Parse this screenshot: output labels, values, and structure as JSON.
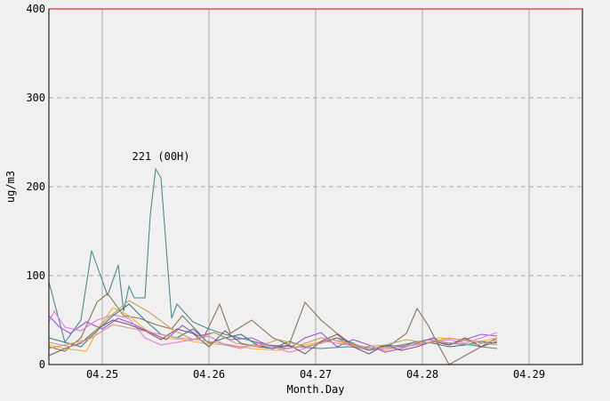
{
  "chart_data": {
    "type": "line",
    "title": "",
    "xlabel": "Month.Day",
    "ylabel": "ug/m3",
    "xlim": [
      4.245,
      4.295
    ],
    "ylim": [
      0,
      400
    ],
    "x_ticks": [
      {
        "value": 4.25,
        "label": "04.25"
      },
      {
        "value": 4.26,
        "label": "04.26"
      },
      {
        "value": 4.27,
        "label": "04.27"
      },
      {
        "value": 4.28,
        "label": "04.28"
      },
      {
        "value": 4.29,
        "label": "04.29"
      }
    ],
    "y_ticks": [
      {
        "value": 0,
        "label": "0"
      },
      {
        "value": 100,
        "label": "100"
      },
      {
        "value": 200,
        "label": "200"
      },
      {
        "value": 300,
        "label": "300"
      },
      {
        "value": 400,
        "label": "400"
      }
    ],
    "grid": true,
    "limit_line": {
      "value": 400,
      "color": "#e03030"
    },
    "annotation": {
      "text": "221 (00H)",
      "x": 4.2555,
      "y": 221
    },
    "series": [
      {
        "color": "#4a8c8c",
        "x": [
          4.245,
          4.2465,
          4.248,
          4.249,
          4.2505,
          4.2515,
          4.252,
          4.2525,
          4.253,
          4.254,
          4.2545,
          4.255,
          4.2555,
          4.2565,
          4.257,
          4.2585,
          4.26,
          4.2615,
          4.2635,
          4.2655,
          4.268,
          4.2705,
          4.273,
          4.2755,
          4.278,
          4.2805,
          4.2825,
          4.2845,
          4.2855,
          4.287
        ],
        "y": [
          93,
          25,
          50,
          128,
          78,
          112,
          60,
          88,
          75,
          75,
          168,
          220,
          210,
          52,
          68,
          48,
          40,
          34,
          28,
          22,
          20,
          18,
          20,
          18,
          22,
          28,
          24,
          22,
          20,
          18
        ]
      },
      {
        "color": "#8b7355",
        "x": [
          4.245,
          4.2465,
          4.248,
          4.2495,
          4.2505,
          4.252,
          4.2535,
          4.255,
          4.2565,
          4.2575,
          4.2595,
          4.261,
          4.262,
          4.264,
          4.266,
          4.2675,
          4.269,
          4.2705,
          4.272,
          4.2735,
          4.2755,
          4.277,
          4.2785,
          4.2795,
          4.2805,
          4.2815,
          4.2825,
          4.284,
          4.2855,
          4.287
        ],
        "y": [
          20,
          15,
          30,
          70,
          80,
          55,
          52,
          45,
          40,
          55,
          30,
          68,
          35,
          50,
          30,
          22,
          70,
          50,
          35,
          22,
          18,
          22,
          35,
          63,
          45,
          22,
          0,
          10,
          20,
          30
        ]
      },
      {
        "color": "#f2b32c",
        "x": [
          4.245,
          4.2465,
          4.2485,
          4.25,
          4.251,
          4.2525,
          4.254,
          4.2555,
          4.2575,
          4.2595,
          4.2615,
          4.264,
          4.2665,
          4.269,
          4.2715,
          4.274,
          4.2765,
          4.279,
          4.2815,
          4.284,
          4.2855,
          4.287
        ],
        "y": [
          22,
          18,
          15,
          48,
          64,
          55,
          40,
          30,
          28,
          24,
          22,
          18,
          16,
          22,
          28,
          20,
          16,
          24,
          30,
          28,
          26,
          30
        ]
      },
      {
        "color": "#a24fd8",
        "x": [
          4.245,
          4.246,
          4.247,
          4.2485,
          4.25,
          4.2515,
          4.253,
          4.2545,
          4.256,
          4.2575,
          4.259,
          4.2605,
          4.262,
          4.264,
          4.2655,
          4.2675,
          4.269,
          4.2705,
          4.272,
          4.2735,
          4.275,
          4.2765,
          4.278,
          4.2795,
          4.281,
          4.2825,
          4.284,
          4.2855,
          4.287
        ],
        "y": [
          55,
          42,
          35,
          48,
          40,
          52,
          45,
          36,
          28,
          44,
          32,
          36,
          28,
          30,
          22,
          18,
          30,
          36,
          20,
          28,
          22,
          14,
          18,
          24,
          30,
          22,
          28,
          34,
          32
        ]
      },
      {
        "color": "#e07ee0",
        "x": [
          4.245,
          4.2455,
          4.2465,
          4.248,
          4.2495,
          4.251,
          4.2525,
          4.254,
          4.2555,
          4.257,
          4.2585,
          4.26,
          4.2615,
          4.263,
          4.2645,
          4.266,
          4.2675,
          4.269,
          4.2705,
          4.272,
          4.2735,
          4.275,
          4.2765,
          4.278,
          4.2795,
          4.281,
          4.2825,
          4.284,
          4.2855,
          4.287
        ],
        "y": [
          48,
          60,
          42,
          38,
          50,
          56,
          52,
          30,
          22,
          25,
          28,
          32,
          22,
          18,
          24,
          20,
          14,
          18,
          26,
          30,
          20,
          16,
          18,
          20,
          22,
          25,
          28,
          24,
          30,
          36
        ]
      },
      {
        "color": "#7a5c6b",
        "x": [
          4.245,
          4.2465,
          4.248,
          4.2495,
          4.251,
          4.2525,
          4.254,
          4.2555,
          4.257,
          4.2585,
          4.26,
          4.2615,
          4.263,
          4.2645,
          4.266,
          4.2675,
          4.269,
          4.2705,
          4.272,
          4.2735,
          4.275,
          4.2765,
          4.278,
          4.2795,
          4.281,
          4.2825,
          4.284,
          4.2855,
          4.287
        ],
        "y": [
          10,
          18,
          24,
          40,
          50,
          45,
          38,
          28,
          40,
          35,
          20,
          38,
          24,
          20,
          18,
          22,
          12,
          26,
          34,
          20,
          12,
          22,
          16,
          20,
          26,
          22,
          30,
          20,
          26
        ]
      },
      {
        "color": "#3d7d7d",
        "x": [
          4.245,
          4.2465,
          4.248,
          4.2495,
          4.251,
          4.2525,
          4.254,
          4.2555,
          4.257,
          4.2585,
          4.26,
          4.2615,
          4.263,
          4.2645,
          4.266,
          4.2675,
          4.269,
          4.2705,
          4.272,
          4.2735,
          4.275,
          4.2765,
          4.278,
          4.2795,
          4.281,
          4.2825,
          4.284,
          4.2855,
          4.287
        ],
        "y": [
          30,
          25,
          20,
          38,
          55,
          68,
          50,
          34,
          30,
          40,
          24,
          30,
          34,
          22,
          18,
          26,
          20,
          24,
          30,
          24,
          16,
          22,
          20,
          26,
          24,
          20,
          22,
          26,
          24
        ]
      },
      {
        "color": "#d99090",
        "x": [
          4.245,
          4.247,
          4.249,
          4.251,
          4.253,
          4.255,
          4.257,
          4.259,
          4.261,
          4.263,
          4.265,
          4.267,
          4.269,
          4.271,
          4.273,
          4.275,
          4.277,
          4.279,
          4.281,
          4.283,
          4.285,
          4.287
        ],
        "y": [
          25,
          20,
          30,
          45,
          40,
          35,
          30,
          28,
          24,
          20,
          22,
          18,
          20,
          26,
          22,
          18,
          20,
          22,
          26,
          24,
          22,
          28
        ]
      },
      {
        "color": "#c8a060",
        "x": [
          4.245,
          4.2465,
          4.2485,
          4.2505,
          4.2525,
          4.2545,
          4.2565,
          4.2585,
          4.2605,
          4.2625,
          4.2645,
          4.2665,
          4.2685,
          4.2705,
          4.2725,
          4.2745,
          4.2765,
          4.2785,
          4.2805,
          4.2825,
          4.2845,
          4.287
        ],
        "y": [
          18,
          22,
          28,
          52,
          72,
          58,
          40,
          28,
          36,
          24,
          20,
          28,
          22,
          30,
          26,
          20,
          22,
          28,
          24,
          30,
          26,
          22
        ]
      }
    ]
  }
}
